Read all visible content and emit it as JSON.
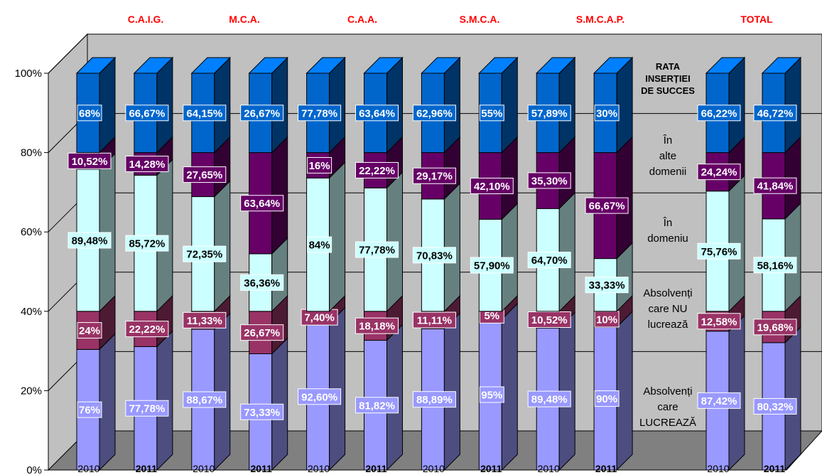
{
  "chart_data": {
    "type": "bar",
    "subtype": "stacked-3d",
    "groups": [
      "C.A.I.G.",
      "M.C.A.",
      "C.A.A.",
      "S.M.C.A.",
      "S.M.C.A.P.",
      "TOTAL"
    ],
    "categories": [
      "2010",
      "2011",
      "2010",
      "2011",
      "2010",
      "2011",
      "2010",
      "2011",
      "2010",
      "2011",
      "2010",
      "2011"
    ],
    "y_ticks": [
      "0%",
      "20%",
      "40%",
      "60%",
      "80%",
      "100%"
    ],
    "ylim": [
      0,
      100
    ],
    "grid": true,
    "series": [
      {
        "name": "Absolvenți care LUCREAZĂ",
        "color": "#9999ff",
        "values": [
          30.4,
          31.1,
          35.5,
          29.3,
          37.0,
          32.7,
          35.6,
          38.0,
          35.8,
          36.0,
          35.0,
          32.1
        ],
        "labels": [
          "76%",
          "77,78%",
          "88,67%",
          "73,33%",
          "92,60%",
          "81,82%",
          "88,89%",
          "95%",
          "89,48%",
          "90%",
          "87,42%",
          "80,32%"
        ]
      },
      {
        "name": "Absolvenți care NU lucrează",
        "color": "#993366",
        "values": [
          9.6,
          8.9,
          4.5,
          10.7,
          3.0,
          7.3,
          4.4,
          2.0,
          4.2,
          4.0,
          5.0,
          7.9
        ],
        "labels": [
          "24%",
          "22,22%",
          "11,33%",
          "26,67%",
          "7,40%",
          "18,18%",
          "11,11%",
          "5%",
          "10,52%",
          "10%",
          "12,58%",
          "19,68%"
        ]
      },
      {
        "name": "În domeniu",
        "color": "#ccffff",
        "values": [
          35.8,
          34.3,
          28.9,
          14.5,
          33.6,
          31.1,
          28.3,
          23.2,
          25.9,
          13.3,
          30.3,
          23.3
        ],
        "labels": [
          "89,48%",
          "85,72%",
          "72,35%",
          "36,36%",
          "84%",
          "77,78%",
          "70,83%",
          "57,90%",
          "64,70%",
          "33,33%",
          "75,76%",
          "58,16%"
        ]
      },
      {
        "name": "În alte domenii",
        "color": "#660066",
        "values": [
          4.2,
          5.7,
          11.1,
          25.5,
          6.4,
          8.9,
          11.7,
          16.8,
          14.1,
          26.7,
          9.7,
          16.7
        ],
        "labels": [
          "10,52%",
          "14,28%",
          "27,65%",
          "63,64%",
          "16%",
          "22,22%",
          "29,17%",
          "42,10%",
          "35,30%",
          "66,67%",
          "24,24%",
          "41,84%"
        ]
      },
      {
        "name": "RATA INSERȚIEI DE SUCCES",
        "color": "#0066cc",
        "values": [
          20.0,
          20.0,
          20.0,
          20.0,
          20.0,
          20.0,
          20.0,
          20.0,
          20.0,
          20.0,
          20.0,
          20.0
        ],
        "labels": [
          "68%",
          "66,67%",
          "64,15%",
          "26,67%",
          "77,78%",
          "63,64%",
          "62,96%",
          "55%",
          "57,89%",
          "30%",
          "66,22%",
          "46,72%"
        ]
      }
    ],
    "row_labels": [
      [
        "Absolvenți",
        "care",
        "LUCREAZĂ"
      ],
      [
        "Absolvenți",
        "care NU",
        "lucrează"
      ],
      [
        "În",
        "domeniu"
      ],
      [
        "În",
        "alte",
        "domenii"
      ],
      [
        "RATA",
        "INSERȚIEI",
        "DE SUCCES"
      ]
    ],
    "colors": {
      "group_title": "#ff0000",
      "floor": "#808080",
      "back_wall": "#c0c0c0",
      "label_box_border": "#ffffff"
    }
  }
}
